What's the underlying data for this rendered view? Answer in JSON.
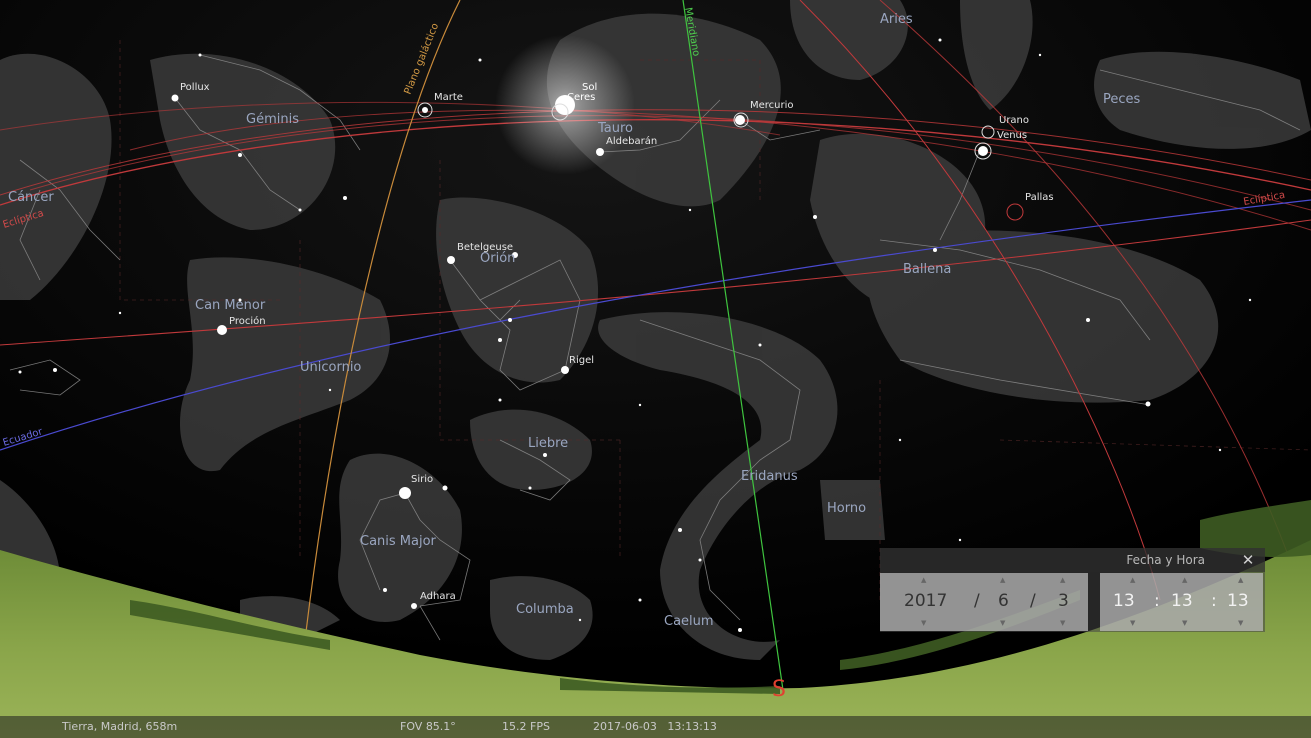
{
  "constellations": {
    "geminis": "Géminis",
    "cancer": "Cáncer",
    "tauro": "Tauro",
    "orion": "Orión",
    "can_menor": "Can Menor",
    "unicornio": "Unicornio",
    "liebre": "Liebre",
    "canis_major": "Canis Major",
    "columba": "Columba",
    "caelum": "Caelum",
    "eridanus": "Eridanus",
    "horno": "Horno",
    "ballena": "Ballena",
    "peces": "Peces",
    "aries": "Aries"
  },
  "stars": {
    "pollux": "Pollux",
    "procion": "Proción",
    "betelgeuse": "Betelgeuse",
    "rigel": "Rigel",
    "sirio": "Sirio",
    "adhara": "Adhara",
    "aldebaran": "Aldebarán"
  },
  "bodies": {
    "marte": "Marte",
    "sol": "Sol",
    "ceres": "Ceres",
    "mercurio": "Mercurio",
    "urano": "Urano",
    "venus": "Venus",
    "pallas": "Pallas"
  },
  "lines": {
    "ecliptica_left": "Eclíptica",
    "ecliptica_right": "Eclíptica",
    "ecuador": "Ecuador",
    "meridiano": "Meridiano",
    "plano_galactico": "Plano galáctico"
  },
  "cardinal": {
    "south": "S"
  },
  "date_time_dialog": {
    "title": "Fecha y Hora",
    "close_icon": "close-icon",
    "year": "2017",
    "month": "6",
    "day": "3",
    "date_sep": "/",
    "hour": "13",
    "minute": "13",
    "second": "13",
    "time_sep": ":"
  },
  "status_bar": {
    "location": "Tierra, Madrid, 658m",
    "fov": "FOV 85.1°",
    "fps": "15.2 FPS",
    "datetime": "2017-06-03   13:13:13"
  },
  "colors": {
    "sky": "#000000",
    "ecliptic": "#c0393b",
    "equator": "#4a4ad0",
    "meridian": "#3fc43f",
    "galactic": "#c88a3a",
    "constellation_label": "#9aa6c0",
    "star_label": "#e6e6e6",
    "cardinal": "#e04030",
    "ground": "#6f8a3b"
  }
}
